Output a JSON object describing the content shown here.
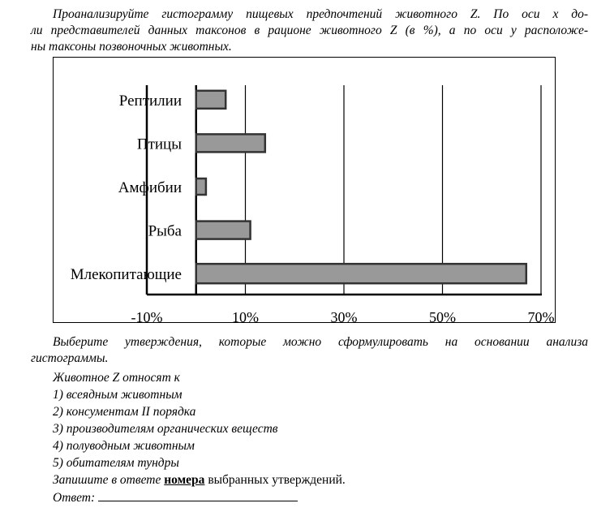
{
  "intro": [
    "Проанализируйте гистограмму пищевых предпочтений животного Z. По оси х до-",
    "ли представителей данных таксонов в рационе животного Z (в %), а по оси у расположе-",
    "ны таксоны позвоночных животных."
  ],
  "chart_data": {
    "type": "bar",
    "orientation": "horizontal",
    "categories": [
      "Рептилии",
      "Птицы",
      "Амфибии",
      "Рыба",
      "Млекопитающие"
    ],
    "values": [
      6,
      14,
      2,
      11,
      67
    ],
    "xlim": [
      -10,
      70
    ],
    "xticks": [
      "-10%",
      "10%",
      "30%",
      "50%",
      "70%"
    ],
    "xtick_values": [
      -10,
      10,
      30,
      50,
      70
    ],
    "grid": true,
    "bar_color": "#999999"
  },
  "after": [
    "Выберите утверждения, которые можно сформулировать на основании анализа",
    "гистограммы."
  ],
  "lead": "Животное Z относят к",
  "options": [
    "1) всеядным животным",
    "2) консументам II порядка",
    "3) производителям органических веществ",
    "4) полуводным животным",
    "5) обитателям тундры"
  ],
  "instruction": {
    "before": "Запишите в ответе ",
    "bold": "номера",
    "after": " выбранных утверждений."
  },
  "answer_label": "Ответ:"
}
